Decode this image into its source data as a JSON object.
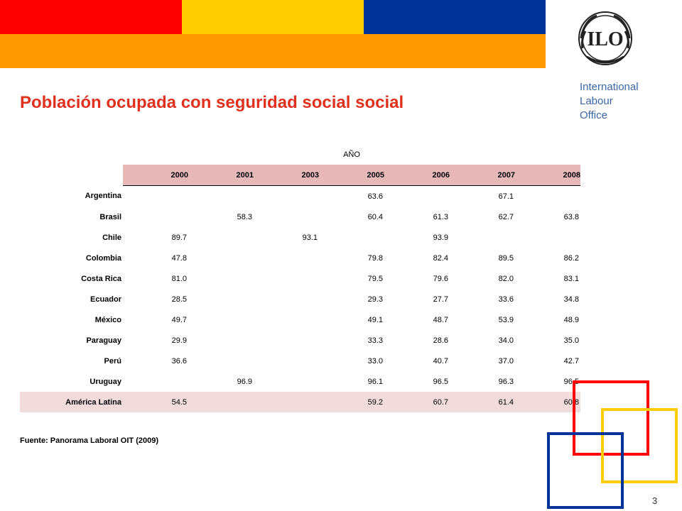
{
  "header": {
    "colors": {
      "red": "#ff0000",
      "yellow": "#ffcc00",
      "blue": "#003399",
      "orange": "#ff9900"
    },
    "logo_text": "ILO",
    "org_name_lines": [
      "International",
      "Labour",
      "Office"
    ]
  },
  "title": "Población ocupada con seguridad social social",
  "table": {
    "group_header": "AÑO",
    "years": [
      "2000",
      "2001",
      "2003",
      "2005",
      "2006",
      "2007",
      "2008"
    ],
    "rows": [
      {
        "country": "Argentina",
        "values": [
          "",
          "",
          "",
          "63.6",
          "",
          "67.1",
          ""
        ]
      },
      {
        "country": "Brasil",
        "values": [
          "",
          "58.3",
          "",
          "60.4",
          "61.3",
          "62.7",
          "63.8"
        ]
      },
      {
        "country": "Chile",
        "values": [
          "89.7",
          "",
          "93.1",
          "",
          "93.9",
          "",
          ""
        ]
      },
      {
        "country": "Colombia",
        "values": [
          "47.8",
          "",
          "",
          "79.8",
          "82.4",
          "89.5",
          "86.2"
        ]
      },
      {
        "country": "Costa Rica",
        "values": [
          "81.0",
          "",
          "",
          "79.5",
          "79.6",
          "82.0",
          "83.1"
        ]
      },
      {
        "country": "Ecuador",
        "values": [
          "28.5",
          "",
          "",
          "29.3",
          "27.7",
          "33.6",
          "34.8"
        ]
      },
      {
        "country": "México",
        "values": [
          "49.7",
          "",
          "",
          "49.1",
          "48.7",
          "53.9",
          "48.9"
        ]
      },
      {
        "country": "Paraguay",
        "values": [
          "29.9",
          "",
          "",
          "33.3",
          "28.6",
          "34.0",
          "35.0"
        ]
      },
      {
        "country": "Perú",
        "values": [
          "36.6",
          "",
          "",
          "33.0",
          "40.7",
          "37.0",
          "42.7"
        ]
      },
      {
        "country": "Uruguay",
        "values": [
          "",
          "96.9",
          "",
          "96.1",
          "96.5",
          "96.3",
          "96.5"
        ]
      }
    ],
    "summary": {
      "country": "América Latina",
      "values": [
        "54.5",
        "",
        "",
        "59.2",
        "60.7",
        "61.4",
        "60.8"
      ]
    }
  },
  "source": "Fuente: Panorama Laboral OIT (2009)",
  "page_number": "3"
}
